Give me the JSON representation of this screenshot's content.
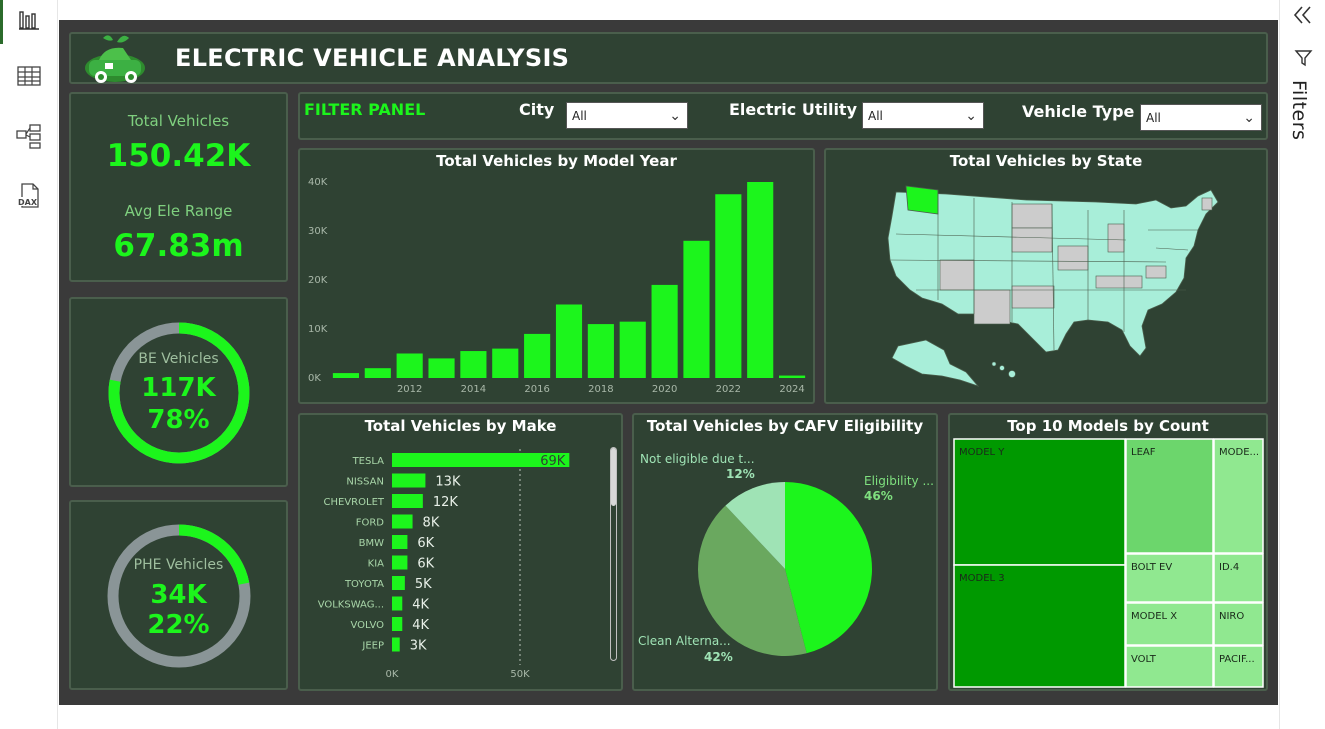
{
  "app": {
    "title": "ELECTRIC VEHICLE ANALYSIS"
  },
  "rail": {
    "filters_label": "Filters"
  },
  "colors": {
    "accent": "#1cf51c",
    "panel": "#2f4233",
    "canvas": "#3a3a3a",
    "muted": "#8a9597"
  },
  "kpi": {
    "total_label": "Total Vehicles",
    "total_value": "150.42K",
    "range_label": "Avg Ele Range",
    "range_value": "67.83m"
  },
  "be": {
    "label": "BE Vehicles",
    "value": "117K",
    "percent": "78%",
    "fraction": 0.78
  },
  "phe": {
    "label": "PHE Vehicles",
    "value": "34K",
    "percent": "22%",
    "fraction": 0.22
  },
  "filter": {
    "title": "FILTER PANEL",
    "city_label": "City",
    "city_value": "All",
    "utility_label": "Electric Utility",
    "utility_value": "All",
    "type_label": "Vehicle Type",
    "type_value": "All"
  },
  "charts": {
    "year_title": "Total Vehicles by Model Year",
    "state_title": "Total Vehicles by State",
    "make_title": "Total Vehicles by Make",
    "cafv_title": "Total Vehicles by CAFV Eligibility",
    "top_title": "Top 10 Models by Count"
  },
  "chart_data": [
    {
      "type": "bar",
      "title": "Total Vehicles by Model Year",
      "categories": [
        "2010",
        "2011",
        "2012",
        "2013",
        "2014",
        "2015",
        "2016",
        "2017",
        "2018",
        "2019",
        "2020",
        "2021",
        "2022",
        "2023",
        "2024"
      ],
      "values": [
        1000,
        2000,
        5000,
        4000,
        5500,
        6000,
        9000,
        15000,
        11000,
        11500,
        19000,
        28000,
        37500,
        40000,
        500
      ],
      "x_tick_labels": [
        "2012",
        "2014",
        "2016",
        "2018",
        "2020",
        "2022",
        "2024"
      ],
      "y_tick_labels": [
        "0K",
        "10K",
        "20K",
        "30K",
        "40K"
      ],
      "ylim": [
        0,
        40000
      ]
    },
    {
      "type": "bar",
      "title": "Total Vehicles by Make",
      "categories": [
        "TESLA",
        "NISSAN",
        "CHEVROLET",
        "FORD",
        "BMW",
        "KIA",
        "TOYOTA",
        "VOLKSWAG...",
        "VOLVO",
        "JEEP"
      ],
      "values": [
        69,
        13,
        12,
        8,
        6,
        6,
        5,
        4,
        4,
        3
      ],
      "labels": [
        "69K",
        "13K",
        "12K",
        "8K",
        "6K",
        "6K",
        "5K",
        "4K",
        "4K",
        "3K"
      ],
      "x_tick_labels": [
        "0K",
        "50K"
      ],
      "xlim": [
        0,
        100
      ]
    },
    {
      "type": "pie",
      "title": "Total Vehicles by CAFV Eligibility",
      "slices": [
        {
          "label": "Eligibility ...",
          "percent": 46,
          "color": "#1cf51c"
        },
        {
          "label": "Clean Alterna...",
          "percent": 42,
          "color": "#6aa85f"
        },
        {
          "label": "Not eligible due t...",
          "percent": 12,
          "color": "#9fe3b5"
        }
      ],
      "pct_labels": [
        "46%",
        "42%",
        "12%"
      ]
    },
    {
      "type": "treemap",
      "title": "Top 10 Models by Count",
      "items": [
        "MODEL Y",
        "MODEL 3",
        "LEAF",
        "MODE...",
        "BOLT EV",
        "ID.4",
        "MODEL X",
        "NIRO",
        "VOLT",
        "PACIF..."
      ]
    }
  ]
}
